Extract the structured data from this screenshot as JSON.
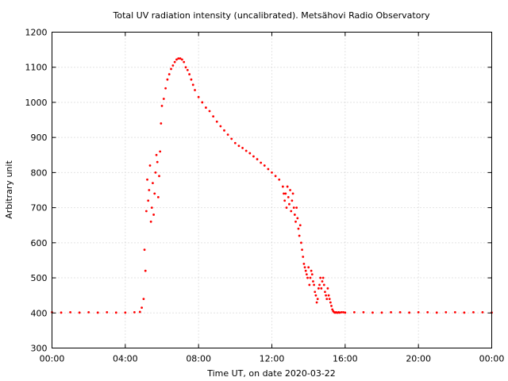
{
  "chart_data": {
    "type": "scatter",
    "title": "Total UV radiation intensity (uncalibrated). Metsähovi Radio Observatory",
    "xlabel": "Time UT, on date 2020-03-22",
    "ylabel": "Arbitrary unit",
    "x_unit": "hours UT",
    "xlim": [
      0,
      24
    ],
    "ylim": [
      300,
      1200
    ],
    "x_ticks": [
      {
        "value": 0,
        "label": "00:00"
      },
      {
        "value": 4,
        "label": "04:00"
      },
      {
        "value": 8,
        "label": "08:00"
      },
      {
        "value": 12,
        "label": "12:00"
      },
      {
        "value": 16,
        "label": "16:00"
      },
      {
        "value": 20,
        "label": "20:00"
      },
      {
        "value": 24,
        "label": "00:00"
      }
    ],
    "y_ticks": [
      300,
      400,
      500,
      600,
      700,
      800,
      900,
      1000,
      1100,
      1200
    ],
    "grid": true,
    "grid_style": "dotted",
    "legend": "none",
    "marker_color": "#ff0000",
    "series": [
      {
        "x": [
          0.0,
          0.5,
          1.0,
          1.5,
          2.0,
          2.5,
          3.0,
          3.5,
          4.0,
          4.5,
          4.8,
          4.9,
          5.0,
          5.05,
          5.1,
          5.15,
          5.2,
          5.25,
          5.3,
          5.35,
          5.4,
          5.45,
          5.5,
          5.55,
          5.6,
          5.65,
          5.7,
          5.75,
          5.8,
          5.85,
          5.9,
          5.95,
          6.0,
          6.1,
          6.2,
          6.3,
          6.4,
          6.5,
          6.6,
          6.7,
          6.8,
          6.9,
          7.0,
          7.1,
          7.2,
          7.3,
          7.4,
          7.5,
          7.6,
          7.7,
          7.8,
          8.0,
          8.2,
          8.4,
          8.6,
          8.8,
          9.0,
          9.2,
          9.4,
          9.6,
          9.8,
          10.0,
          10.2,
          10.4,
          10.6,
          10.8,
          11.0,
          11.2,
          11.4,
          11.6,
          11.8,
          12.0,
          12.2,
          12.4,
          12.6,
          12.65,
          12.7,
          12.75,
          12.8,
          12.85,
          12.9,
          12.95,
          13.0,
          13.05,
          13.1,
          13.15,
          13.2,
          13.25,
          13.3,
          13.35,
          13.4,
          13.45,
          13.5,
          13.55,
          13.6,
          13.65,
          13.7,
          13.75,
          13.8,
          13.85,
          13.9,
          13.95,
          14.0,
          14.05,
          14.1,
          14.15,
          14.2,
          14.25,
          14.3,
          14.35,
          14.4,
          14.45,
          14.5,
          14.55,
          14.6,
          14.65,
          14.7,
          14.75,
          14.8,
          14.85,
          14.9,
          14.95,
          15.0,
          15.05,
          15.1,
          15.15,
          15.2,
          15.25,
          15.3,
          15.35,
          15.4,
          15.45,
          15.5,
          15.55,
          15.6,
          15.65,
          15.7,
          15.8,
          15.9,
          16.0,
          16.5,
          17.0,
          17.5,
          18.0,
          18.5,
          19.0,
          19.5,
          20.0,
          20.5,
          21.0,
          21.5,
          22.0,
          22.5,
          23.0,
          23.5,
          24.0
        ],
        "y": [
          402,
          401,
          402,
          401,
          402,
          401,
          402,
          401,
          401,
          402,
          403,
          415,
          440,
          580,
          520,
          690,
          780,
          720,
          750,
          820,
          660,
          700,
          770,
          680,
          740,
          800,
          850,
          830,
          730,
          790,
          860,
          940,
          990,
          1010,
          1040,
          1065,
          1080,
          1095,
          1105,
          1115,
          1122,
          1125,
          1125,
          1122,
          1115,
          1100,
          1092,
          1080,
          1065,
          1050,
          1035,
          1015,
          1000,
          985,
          975,
          960,
          945,
          932,
          920,
          908,
          896,
          884,
          876,
          870,
          862,
          855,
          846,
          838,
          828,
          820,
          810,
          800,
          790,
          780,
          760,
          740,
          720,
          740,
          700,
          760,
          730,
          710,
          750,
          690,
          720,
          740,
          700,
          680,
          660,
          700,
          670,
          640,
          620,
          650,
          600,
          580,
          560,
          540,
          530,
          520,
          510,
          500,
          530,
          480,
          500,
          520,
          510,
          490,
          480,
          460,
          450,
          430,
          440,
          470,
          480,
          500,
          470,
          490,
          500,
          480,
          460,
          450,
          440,
          470,
          450,
          440,
          430,
          420,
          410,
          405,
          402,
          401,
          402,
          401,
          401,
          402,
          401,
          402,
          402,
          401,
          402,
          402,
          401,
          401,
          402,
          402,
          401,
          402,
          402,
          401,
          402,
          402,
          401,
          402,
          402,
          401
        ]
      }
    ]
  }
}
